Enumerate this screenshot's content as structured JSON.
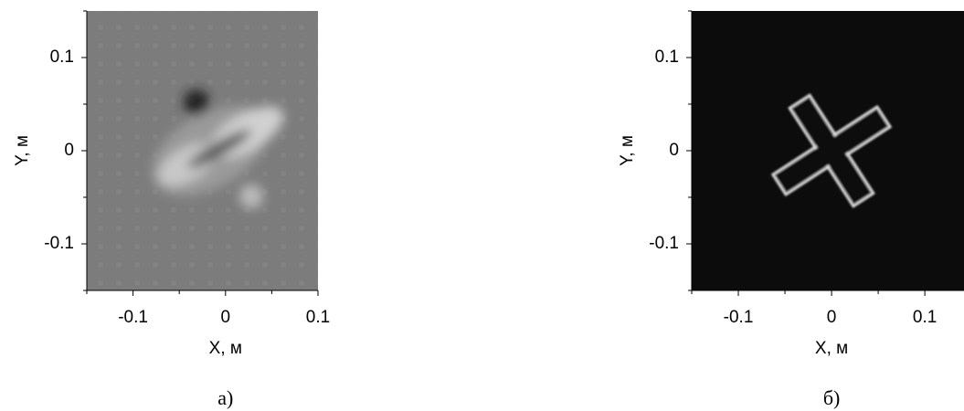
{
  "chart_data": [
    {
      "type": "image",
      "caption": "а)",
      "xlabel": "X, м",
      "ylabel": "Y, м",
      "xlim": [
        -0.15,
        0.1
      ],
      "ylim": [
        -0.15,
        0.15
      ],
      "xticks": [
        -0.1,
        0,
        0.1
      ],
      "yticks": [
        -0.1,
        0,
        0.1
      ],
      "xminorticks": [
        -0.15,
        -0.05,
        0.05
      ],
      "yminorticks": [
        -0.15,
        -0.05,
        0.05,
        0.15
      ]
    },
    {
      "type": "image",
      "caption": "б)",
      "xlabel": "X, м",
      "ylabel": "Y, м",
      "xlim": [
        -0.15,
        0.142
      ],
      "ylim": [
        -0.15,
        0.15
      ],
      "xticks": [
        -0.1,
        0,
        0.1
      ],
      "yticks": [
        -0.1,
        0,
        0.1
      ],
      "xminorticks": [
        -0.15,
        -0.05,
        0.05
      ],
      "yminorticks": [
        -0.15,
        -0.05,
        0.05,
        0.15
      ]
    }
  ]
}
